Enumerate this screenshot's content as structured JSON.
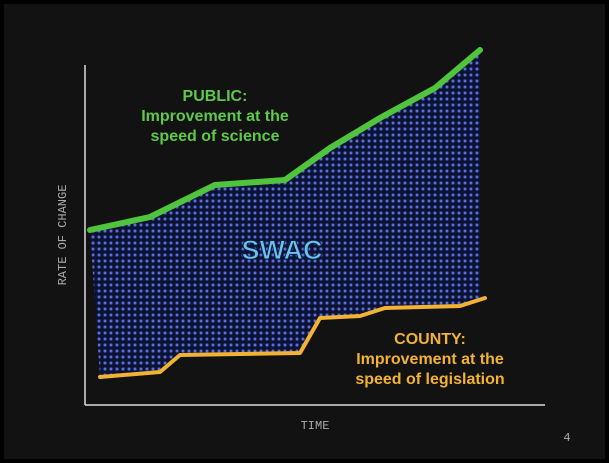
{
  "public": {
    "title": "PUBLIC:",
    "lines": [
      "Improvement at the",
      "speed of science"
    ]
  },
  "swac": "SWAC",
  "county": {
    "title": "COUNTY:",
    "lines": [
      "Improvement at the",
      "speed of legislation"
    ]
  },
  "axes": {
    "y_label": "RATE OF CHANGE",
    "x_label": "TIME"
  },
  "page_number": "4"
}
